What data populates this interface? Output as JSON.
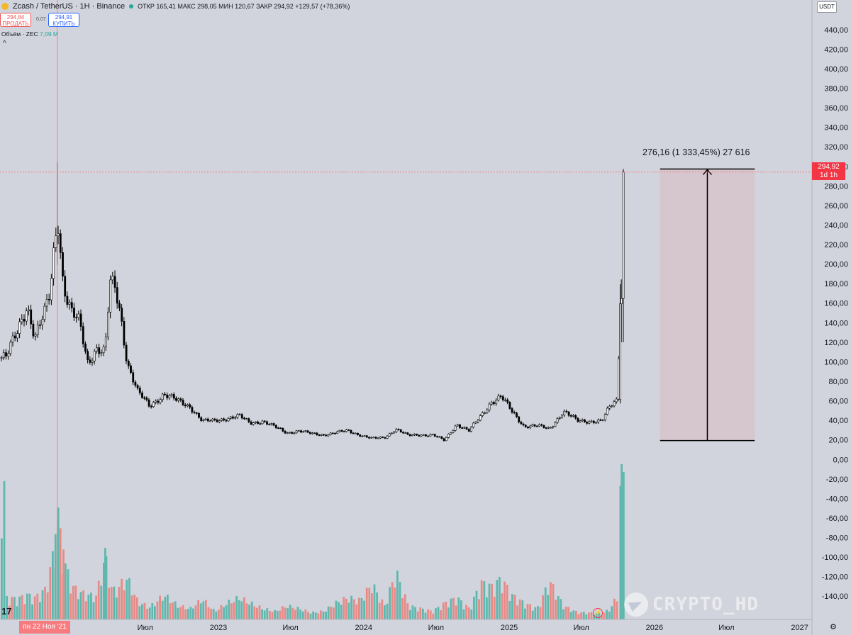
{
  "header": {
    "symbol_title": "Zcash / TetherUS · 1H · Binance",
    "ohlc": "ОТКР 165,41  МАКС 298,05  МИН 120,67  ЗАКР 294,92  +129,57 (+78,36%)",
    "sell_price": "294,84",
    "sell_label": "ПРОДАТЬ",
    "spread": "0,07",
    "buy_price": "294,91",
    "buy_label": "КУПИТЬ",
    "volume_label": "Объём · ZEC",
    "volume_value": "7,09 M",
    "collapse_glyph": "^"
  },
  "scale": {
    "currency": "USDT",
    "last_price": "294,92",
    "countdown": "1d 1h"
  },
  "cursor_date": "пн 22 Ноя '21",
  "measure_label": "276,16 (1 333,45%) 27 616",
  "tv_logo": "17",
  "watermark": "CRYPTO_HD",
  "icons": {
    "logo": "tradingview-logo-icon",
    "settings": "gear-icon",
    "telegram": "telegram-icon"
  },
  "colors": {
    "background": "#d1d4dc",
    "candle_up": "#ffffff",
    "candle_down": "#000000",
    "volume_up": "#5fb8ae",
    "volume_down": "#e88a86",
    "measure_fill": "#d7c4cc",
    "last_price": "#f23645",
    "crosshair": "#f77c80"
  },
  "chart_data": {
    "type": "candlestick",
    "price_axis": {
      "min": -150,
      "max": 450,
      "ticks": [
        440,
        420,
        400,
        380,
        360,
        340,
        320,
        300,
        280,
        260,
        240,
        220,
        200,
        180,
        160,
        140,
        120,
        100,
        80,
        60,
        40,
        20,
        0,
        -20,
        -40,
        -60,
        -80,
        -100,
        -120,
        -140
      ],
      "tick_labels": [
        "440,00",
        "420,00",
        "400,00",
        "380,00",
        "360,00",
        "340,00",
        "320,00",
        "300,00",
        "280,00",
        "260,00",
        "240,00",
        "220,00",
        "200,00",
        "180,00",
        "160,00",
        "140,00",
        "120,00",
        "100,00",
        "80,00",
        "60,00",
        "40,00",
        "20,00",
        "0,00",
        "-20,00",
        "-40,00",
        "-60,00",
        "-80,00",
        "-100,00",
        "-120,00",
        "-140,00"
      ]
    },
    "time_axis": {
      "labels": [
        {
          "label": "Июл",
          "date": "2022-07-01"
        },
        {
          "label": "2023",
          "date": "2023-01-01"
        },
        {
          "label": "Июл",
          "date": "2023-07-01"
        },
        {
          "label": "2024",
          "date": "2024-01-01"
        },
        {
          "label": "Июл",
          "date": "2024-07-01"
        },
        {
          "label": "2025",
          "date": "2025-01-01"
        },
        {
          "label": "Июл",
          "date": "2025-07-01"
        },
        {
          "label": "2026",
          "date": "2026-01-01"
        },
        {
          "label": "Июл",
          "date": "2026-07-01"
        },
        {
          "label": "2027",
          "date": "2027-01-01"
        }
      ]
    },
    "price_series": [
      {
        "date": "2021-07-15",
        "close": 105
      },
      {
        "date": "2021-08-10",
        "close": 130
      },
      {
        "date": "2021-09-05",
        "close": 160
      },
      {
        "date": "2021-09-25",
        "close": 125
      },
      {
        "date": "2021-10-20",
        "close": 150
      },
      {
        "date": "2021-11-01",
        "close": 170
      },
      {
        "date": "2021-11-15",
        "close": 230
      },
      {
        "date": "2021-11-22",
        "close": 250
      },
      {
        "date": "2021-12-05",
        "close": 180
      },
      {
        "date": "2021-12-25",
        "close": 150
      },
      {
        "date": "2022-01-15",
        "close": 140
      },
      {
        "date": "2022-02-05",
        "close": 100
      },
      {
        "date": "2022-02-25",
        "close": 115
      },
      {
        "date": "2022-03-20",
        "close": 110
      },
      {
        "date": "2022-04-02",
        "close": 180
      },
      {
        "date": "2022-04-15",
        "close": 175
      },
      {
        "date": "2022-04-28",
        "close": 150
      },
      {
        "date": "2022-05-15",
        "close": 100
      },
      {
        "date": "2022-06-10",
        "close": 70
      },
      {
        "date": "2022-07-10",
        "close": 55
      },
      {
        "date": "2022-08-15",
        "close": 68
      },
      {
        "date": "2022-09-20",
        "close": 60
      },
      {
        "date": "2022-10-20",
        "close": 55
      },
      {
        "date": "2022-11-20",
        "close": 40
      },
      {
        "date": "2022-12-20",
        "close": 40
      },
      {
        "date": "2023-01-20",
        "close": 43
      },
      {
        "date": "2023-02-20",
        "close": 45
      },
      {
        "date": "2023-03-20",
        "close": 38
      },
      {
        "date": "2023-04-20",
        "close": 40
      },
      {
        "date": "2023-05-20",
        "close": 34
      },
      {
        "date": "2023-06-20",
        "close": 28
      },
      {
        "date": "2023-07-20",
        "close": 30
      },
      {
        "date": "2023-08-20",
        "close": 27
      },
      {
        "date": "2023-09-20",
        "close": 26
      },
      {
        "date": "2023-10-20",
        "close": 28
      },
      {
        "date": "2023-11-20",
        "close": 30
      },
      {
        "date": "2023-12-20",
        "close": 26
      },
      {
        "date": "2024-01-20",
        "close": 22
      },
      {
        "date": "2024-02-20",
        "close": 23
      },
      {
        "date": "2024-03-20",
        "close": 32
      },
      {
        "date": "2024-04-20",
        "close": 25
      },
      {
        "date": "2024-05-20",
        "close": 26
      },
      {
        "date": "2024-06-20",
        "close": 26
      },
      {
        "date": "2024-07-20",
        "close": 20
      },
      {
        "date": "2024-08-20",
        "close": 37
      },
      {
        "date": "2024-09-20",
        "close": 30
      },
      {
        "date": "2024-10-20",
        "close": 45
      },
      {
        "date": "2024-11-15",
        "close": 60
      },
      {
        "date": "2024-12-10",
        "close": 65
      },
      {
        "date": "2025-01-05",
        "close": 50
      },
      {
        "date": "2025-02-05",
        "close": 35
      },
      {
        "date": "2025-03-10",
        "close": 35
      },
      {
        "date": "2025-04-10",
        "close": 32
      },
      {
        "date": "2025-05-15",
        "close": 50
      },
      {
        "date": "2025-06-20",
        "close": 40
      },
      {
        "date": "2025-07-20",
        "close": 40
      },
      {
        "date": "2025-08-20",
        "close": 40
      },
      {
        "date": "2025-09-10",
        "close": 55
      },
      {
        "date": "2025-09-28",
        "close": 62
      },
      {
        "date": "2025-10-05",
        "close": 160
      },
      {
        "date": "2025-10-08",
        "close": 170
      },
      {
        "date": "2025-10-13",
        "close": 294.92
      }
    ],
    "peak": {
      "date": "2021-11-22",
      "high": 305
    },
    "last_candle": {
      "open": 165.41,
      "high": 298.05,
      "low": 120.67,
      "close": 294.92,
      "change": 129.57,
      "change_pct": 78.36
    },
    "volume_axis": {
      "min": 0,
      "max": 100
    },
    "volume_series": [
      {
        "date": "2021-07-15",
        "value": 16,
        "dir": "down"
      },
      {
        "date": "2021-08-10",
        "value": 15,
        "dir": "up"
      },
      {
        "date": "2021-09-05",
        "value": 18,
        "dir": "down"
      },
      {
        "date": "2021-09-25",
        "value": 16,
        "dir": "up"
      },
      {
        "date": "2021-10-20",
        "value": 22,
        "dir": "down"
      },
      {
        "date": "2021-11-01",
        "value": 36,
        "dir": "up"
      },
      {
        "date": "2021-11-15",
        "value": 55,
        "dir": "up"
      },
      {
        "date": "2021-11-22",
        "value": 72,
        "dir": "up"
      },
      {
        "date": "2021-12-05",
        "value": 45,
        "dir": "down"
      },
      {
        "date": "2021-12-25",
        "value": 25,
        "dir": "down"
      },
      {
        "date": "2022-01-15",
        "value": 20,
        "dir": "down"
      },
      {
        "date": "2022-02-05",
        "value": 18,
        "dir": "down"
      },
      {
        "date": "2022-02-25",
        "value": 17,
        "dir": "up"
      },
      {
        "date": "2022-03-20",
        "value": 46,
        "dir": "up"
      },
      {
        "date": "2022-04-02",
        "value": 25,
        "dir": "up"
      },
      {
        "date": "2022-04-15",
        "value": 20,
        "dir": "down"
      },
      {
        "date": "2022-04-28",
        "value": 26,
        "dir": "down"
      },
      {
        "date": "2022-05-15",
        "value": 30,
        "dir": "down"
      },
      {
        "date": "2022-06-10",
        "value": 13,
        "dir": "down"
      },
      {
        "date": "2022-07-10",
        "value": 9,
        "dir": "up"
      },
      {
        "date": "2022-08-15",
        "value": 18,
        "dir": "up"
      },
      {
        "date": "2022-09-20",
        "value": 10,
        "dir": "down"
      },
      {
        "date": "2022-10-20",
        "value": 8,
        "dir": "up"
      },
      {
        "date": "2022-11-20",
        "value": 15,
        "dir": "down"
      },
      {
        "date": "2022-12-20",
        "value": 6,
        "dir": "up"
      },
      {
        "date": "2023-01-20",
        "value": 12,
        "dir": "up"
      },
      {
        "date": "2023-02-20",
        "value": 16,
        "dir": "up"
      },
      {
        "date": "2023-03-20",
        "value": 12,
        "dir": "down"
      },
      {
        "date": "2023-04-20",
        "value": 8,
        "dir": "up"
      },
      {
        "date": "2023-05-20",
        "value": 6,
        "dir": "down"
      },
      {
        "date": "2023-06-20",
        "value": 10,
        "dir": "down"
      },
      {
        "date": "2023-07-20",
        "value": 8,
        "dir": "up"
      },
      {
        "date": "2023-08-20",
        "value": 5,
        "dir": "down"
      },
      {
        "date": "2023-09-20",
        "value": 6,
        "dir": "up"
      },
      {
        "date": "2023-10-20",
        "value": 12,
        "dir": "up"
      },
      {
        "date": "2023-11-20",
        "value": 16,
        "dir": "up"
      },
      {
        "date": "2023-12-20",
        "value": 14,
        "dir": "down"
      },
      {
        "date": "2024-01-20",
        "value": 26,
        "dir": "down"
      },
      {
        "date": "2024-02-20",
        "value": 10,
        "dir": "up"
      },
      {
        "date": "2024-03-20",
        "value": 35,
        "dir": "up"
      },
      {
        "date": "2024-04-20",
        "value": 10,
        "dir": "down"
      },
      {
        "date": "2024-05-20",
        "value": 8,
        "dir": "up"
      },
      {
        "date": "2024-06-20",
        "value": 6,
        "dir": "down"
      },
      {
        "date": "2024-07-20",
        "value": 12,
        "dir": "down"
      },
      {
        "date": "2024-08-20",
        "value": 16,
        "dir": "up"
      },
      {
        "date": "2024-09-20",
        "value": 8,
        "dir": "down"
      },
      {
        "date": "2024-10-20",
        "value": 27,
        "dir": "up"
      },
      {
        "date": "2024-11-15",
        "value": 24,
        "dir": "up"
      },
      {
        "date": "2024-12-10",
        "value": 30,
        "dir": "up"
      },
      {
        "date": "2025-01-05",
        "value": 18,
        "dir": "down"
      },
      {
        "date": "2025-02-05",
        "value": 12,
        "dir": "down"
      },
      {
        "date": "2025-03-10",
        "value": 8,
        "dir": "up"
      },
      {
        "date": "2025-04-10",
        "value": 28,
        "dir": "down"
      },
      {
        "date": "2025-05-15",
        "value": 10,
        "dir": "up"
      },
      {
        "date": "2025-06-20",
        "value": 5,
        "dir": "down"
      },
      {
        "date": "2025-07-20",
        "value": 5,
        "dir": "up"
      },
      {
        "date": "2025-08-20",
        "value": 4,
        "dir": "down"
      },
      {
        "date": "2025-09-10",
        "value": 8,
        "dir": "up"
      },
      {
        "date": "2025-09-28",
        "value": 18,
        "dir": "up"
      },
      {
        "date": "2025-10-05",
        "value": 86,
        "dir": "up"
      },
      {
        "date": "2025-10-08",
        "value": 100,
        "dir": "up"
      },
      {
        "date": "2025-10-13",
        "value": 95,
        "dir": "up"
      }
    ],
    "measure": {
      "date_from": "2026-01-15",
      "date_to": "2026-09-10",
      "price_from": 20,
      "price_to": 298.05
    }
  }
}
